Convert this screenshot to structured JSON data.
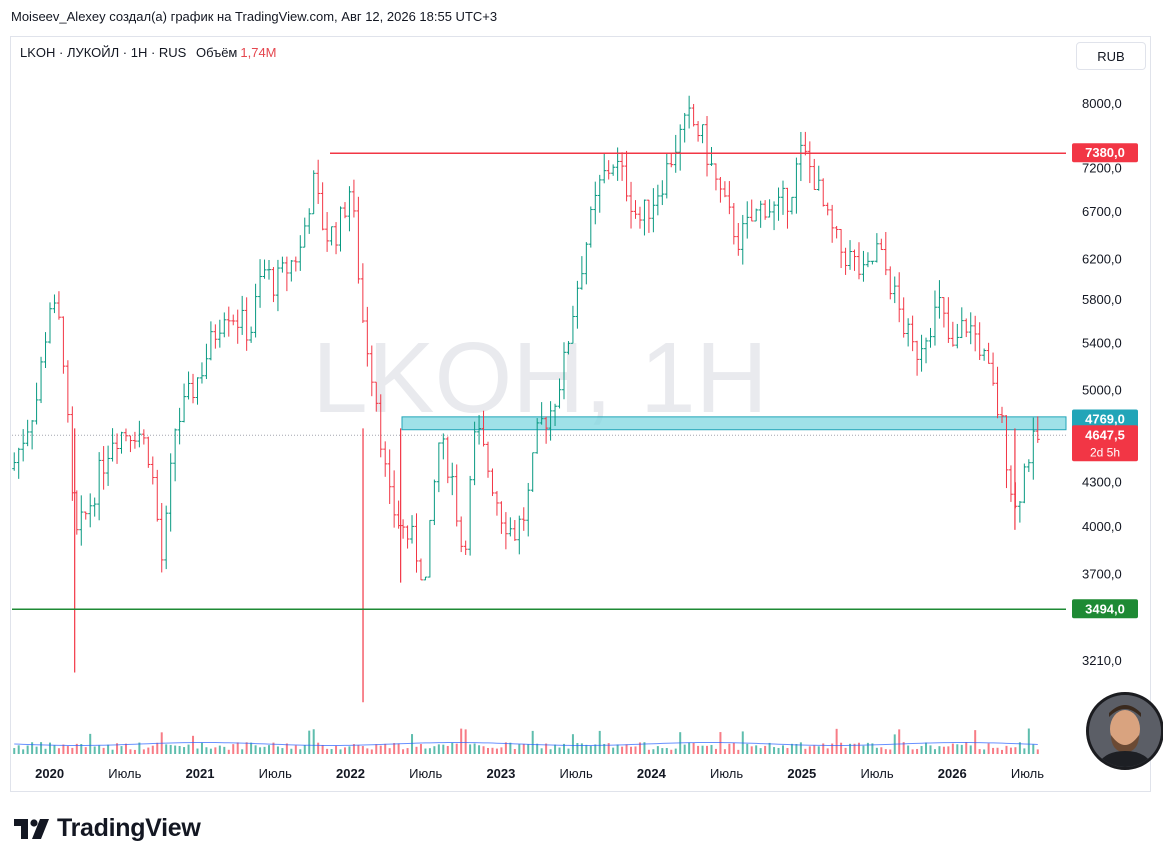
{
  "header": {
    "credit": "Moiseev_Alexey создал(а) график на TradingView.com, Авг 12, 2026 18:55 UTC+3"
  },
  "legend": {
    "title": "LKOH · ЛУКОЙЛ · 1H · RUS",
    "volume_label": "Объём",
    "volume_value": "1,74M"
  },
  "currency": "RUB",
  "watermark": "LKOH, 1H",
  "brand": "TradingView",
  "colors": {
    "up": "#089981",
    "down": "#f23645",
    "resistance": "#f23645",
    "support": "#1e8a34",
    "zone": "#7fd7e0",
    "zone_label": "#22a5b8",
    "volume_avg": "#2962ff"
  },
  "chart_data": {
    "type": "candlestick",
    "y_scale": "log",
    "y_ticks": [
      "8000,0",
      "7200,0",
      "6700,0",
      "6200,0",
      "5800,0",
      "5400,0",
      "5000,0",
      "4300,0",
      "4000,0",
      "3700,0",
      "3210,0"
    ],
    "x_ticks": [
      "2020",
      "Июль",
      "2021",
      "Июль",
      "2022",
      "Июль",
      "2023",
      "Июль",
      "2024",
      "Июль",
      "2025",
      "Июль",
      "2026",
      "Июль"
    ],
    "x_range": [
      "2019-10",
      "2026-08"
    ],
    "price_labels": [
      {
        "text": "7380,0",
        "value": 7380,
        "kind": "resistance"
      },
      {
        "text": "4769,0",
        "value": 4769,
        "kind": "zone"
      },
      {
        "text": "4647,5",
        "value": 4647.5,
        "kind": "last",
        "sub": "2d 5h"
      },
      {
        "text": "3494,0",
        "value": 3494,
        "kind": "support"
      }
    ],
    "lines": [
      {
        "name": "resistance",
        "value": 7380
      },
      {
        "name": "support",
        "value": 3494
      }
    ],
    "zone": {
      "low": 4690,
      "high": 4790
    },
    "last_price": 4647.5,
    "path_keypoints": [
      [
        "2019-10",
        4400
      ],
      [
        "2019-12",
        4950
      ],
      [
        "2020-01",
        5770
      ],
      [
        "2020-02",
        5500
      ],
      [
        "2020-03",
        3900
      ],
      [
        "2020-04",
        4100
      ],
      [
        "2020-06",
        4650
      ],
      [
        "2020-08",
        4700
      ],
      [
        "2020-09",
        4500
      ],
      [
        "2020-10",
        3750
      ],
      [
        "2020-11",
        4700
      ],
      [
        "2021-01",
        5150
      ],
      [
        "2021-03",
        5750
      ],
      [
        "2021-05",
        5500
      ],
      [
        "2021-06",
        6100
      ],
      [
        "2021-07",
        5950
      ],
      [
        "2021-09",
        6300
      ],
      [
        "2021-10",
        7050
      ],
      [
        "2021-11",
        6450
      ],
      [
        "2021-12",
        6500
      ],
      [
        "2022-01",
        7000
      ],
      [
        "2022-02",
        5600
      ],
      [
        "2022-03",
        5000
      ],
      [
        "2022-04",
        4200
      ],
      [
        "2022-05",
        4000
      ],
      [
        "2022-06",
        3900
      ],
      [
        "2022-07",
        3650
      ],
      [
        "2022-08",
        4600
      ],
      [
        "2022-09",
        4400
      ],
      [
        "2022-10",
        3800
      ],
      [
        "2022-11",
        4700
      ],
      [
        "2022-12",
        4400
      ],
      [
        "2023-01",
        4100
      ],
      [
        "2023-02",
        3950
      ],
      [
        "2023-03",
        4100
      ],
      [
        "2023-04",
        4700
      ],
      [
        "2023-05",
        4850
      ],
      [
        "2023-06",
        5200
      ],
      [
        "2023-07",
        5900
      ],
      [
        "2023-08",
        6500
      ],
      [
        "2023-09",
        7050
      ],
      [
        "2023-10",
        7300
      ],
      [
        "2023-11",
        7000
      ],
      [
        "2023-12",
        6600
      ],
      [
        "2024-01",
        6800
      ],
      [
        "2024-02",
        7100
      ],
      [
        "2024-03",
        7500
      ],
      [
        "2024-04",
        7800
      ],
      [
        "2024-05",
        7600
      ],
      [
        "2024-06",
        7100
      ],
      [
        "2024-07",
        6700
      ],
      [
        "2024-08",
        6400
      ],
      [
        "2024-09",
        6600
      ],
      [
        "2024-10",
        6800
      ],
      [
        "2024-11",
        6700
      ],
      [
        "2024-12",
        6900
      ],
      [
        "2025-01",
        7400
      ],
      [
        "2025-02",
        7100
      ],
      [
        "2025-03",
        6600
      ],
      [
        "2025-04",
        6300
      ],
      [
        "2025-05",
        6200
      ],
      [
        "2025-06",
        6000
      ],
      [
        "2025-07",
        6300
      ],
      [
        "2025-08",
        6000
      ],
      [
        "2025-09",
        5600
      ],
      [
        "2025-10",
        5300
      ],
      [
        "2025-11",
        5550
      ],
      [
        "2025-12",
        5750
      ],
      [
        "2026-01",
        5300
      ],
      [
        "2026-02",
        5600
      ],
      [
        "2026-03",
        5450
      ],
      [
        "2026-04",
        5100
      ],
      [
        "2026-05",
        4700
      ],
      [
        "2026-06",
        4100
      ],
      [
        "2026-07",
        4500
      ],
      [
        "2026-08",
        4647.5
      ]
    ]
  }
}
